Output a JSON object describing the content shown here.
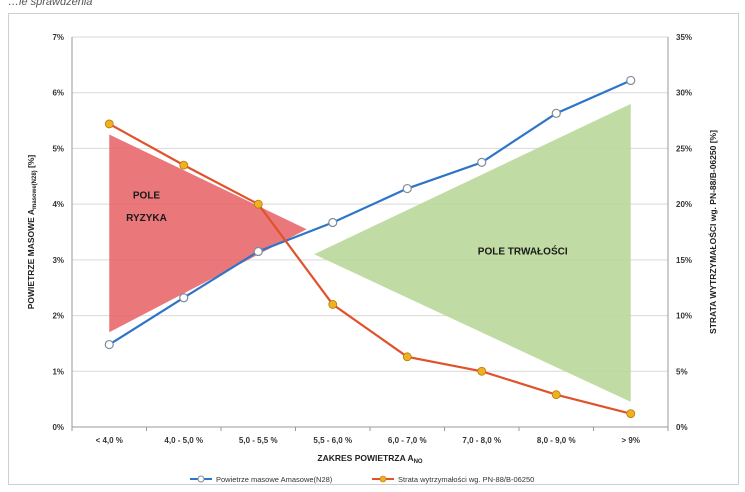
{
  "header_fragment": "…ie sprawdzenia",
  "chart_data": {
    "type": "line",
    "categories": [
      "< 4,0 %",
      "4,0 - 5,0 %",
      "5,0 - 5,5 %",
      "5,5 - 6,0 %",
      "6,0 - 7,0 %",
      "7,0 - 8,0 %",
      "8,0 - 9,0 %",
      "> 9%"
    ],
    "xlabel": "ZAKRES POWIETRZA A",
    "xlabel_sub": "NO",
    "ylabel_left": "POWIETRZE MASOWE A",
    "ylabel_left_sub": "masowe(N28)",
    "ylabel_left_suffix": " [%]",
    "ylabel_right": "STRATA WYTRZYMAŁOŚCI wg. PN-88/B-06250 [%]",
    "ylim_left": [
      0,
      7
    ],
    "ylim_right": [
      0,
      35
    ],
    "yticks_left": [
      "0%",
      "1%",
      "2%",
      "3%",
      "4%",
      "5%",
      "6%",
      "7%"
    ],
    "yticks_right": [
      "0%",
      "5%",
      "10%",
      "15%",
      "20%",
      "25%",
      "30%",
      "35%"
    ],
    "grid": true,
    "legend_position": "bottom",
    "series": [
      {
        "name": "Powietrze masowe Amasowe(N28)",
        "axis": "left",
        "color": "#2e75c8",
        "values": [
          1.48,
          2.32,
          3.15,
          3.67,
          4.28,
          4.75,
          5.63,
          6.22
        ]
      },
      {
        "name": "Strata wytrzymałości wg. PN-88/B-06250",
        "axis": "right",
        "color": "#e0522a",
        "marker_color": "#f2b01e",
        "values": [
          27.2,
          23.5,
          20.0,
          11.0,
          6.3,
          5.0,
          2.9,
          1.2
        ]
      }
    ],
    "regions": [
      {
        "label_lines": [
          "POLE",
          "RYZYKA"
        ],
        "color": "#e8686b",
        "apex_category": 2.65,
        "base_category": 0,
        "base_y_top": 5.25,
        "base_y_bottom": 1.7,
        "apex_y": 3.55
      },
      {
        "label_lines": [
          "POLE TRWAŁOŚCI"
        ],
        "color": "#b9d89a",
        "apex_category": 2.75,
        "base_category": 7,
        "base_y_top": 5.8,
        "base_y_bottom": 0.45,
        "apex_y": 3.1
      }
    ]
  }
}
